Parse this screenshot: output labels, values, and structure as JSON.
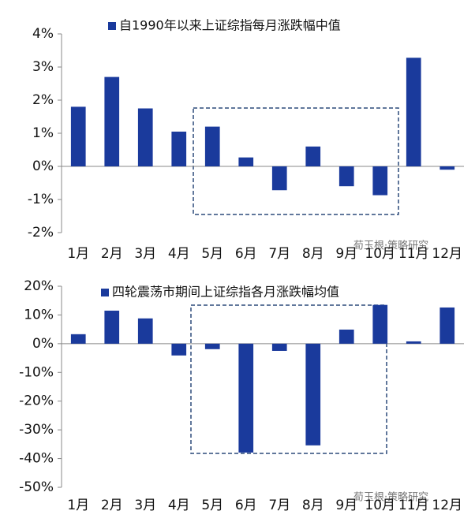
{
  "chart_data": [
    {
      "type": "bar",
      "categories": [
        "1月",
        "2月",
        "3月",
        "4月",
        "5月",
        "6月",
        "7月",
        "8月",
        "9月",
        "10月",
        "11月",
        "12月"
      ],
      "series": [
        {
          "name": "自1990年以来上证综指每月涨跌幅中值",
          "color": "#1a3a9c",
          "values": [
            1.8,
            2.7,
            1.75,
            1.05,
            1.2,
            0.27,
            -0.72,
            0.6,
            -0.6,
            -0.87,
            3.28,
            -0.1
          ]
        }
      ],
      "ylim": [
        -2,
        4
      ],
      "yticks": [
        {
          "value": -2,
          "label": "-2%"
        },
        {
          "value": -1,
          "label": "-1%"
        },
        {
          "value": 0,
          "label": "0%"
        },
        {
          "value": 1,
          "label": "1%"
        },
        {
          "value": 2,
          "label": "2%"
        },
        {
          "value": 3,
          "label": "3%"
        },
        {
          "value": 4,
          "label": "4%"
        }
      ],
      "watermark": "荀玉根·策略研究"
    },
    {
      "type": "bar",
      "categories": [
        "1月",
        "2月",
        "3月",
        "4月",
        "5月",
        "6月",
        "7月",
        "8月",
        "9月",
        "10月",
        "11月",
        "12月"
      ],
      "series": [
        {
          "name": "四轮震荡市期间上证综指各月涨跌幅均值",
          "color": "#1a3a9c",
          "values": [
            3.3,
            11.5,
            8.8,
            -4.1,
            -1.9,
            -37.9,
            -2.5,
            -35.4,
            4.9,
            13.5,
            0.8,
            12.6
          ]
        }
      ],
      "ylim": [
        -50,
        20
      ],
      "yticks": [
        {
          "value": -50,
          "label": "-50%"
        },
        {
          "value": -40,
          "label": "-40%"
        },
        {
          "value": -30,
          "label": "-30%"
        },
        {
          "value": -20,
          "label": "-20%"
        },
        {
          "value": -10,
          "label": "-10%"
        },
        {
          "value": 0,
          "label": "0%"
        },
        {
          "value": 10,
          "label": "10%"
        },
        {
          "value": 20,
          "label": "20%"
        }
      ],
      "watermark": "荀玉根·策略研究"
    }
  ]
}
